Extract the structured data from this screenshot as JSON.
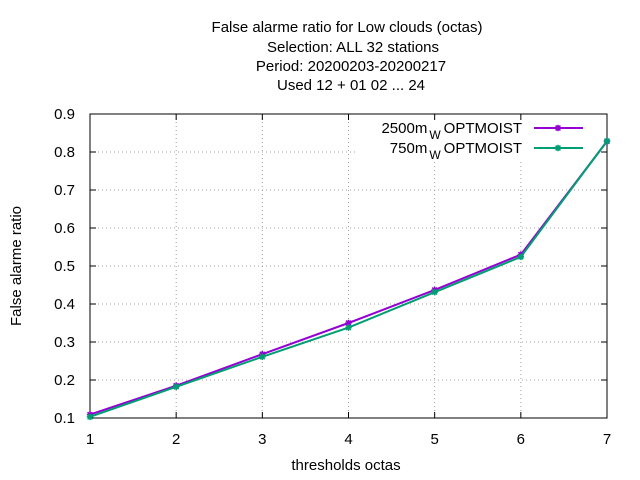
{
  "chart_data": {
    "type": "line",
    "title_lines": [
      "False alarme ratio  for Low clouds (octas)",
      "Selection: ALL     32 stations",
      "Period: 20200203-20200217",
      "Used  12 + 01 02 ... 24"
    ],
    "xlabel": "thresholds octas",
    "ylabel": "False alarme ratio",
    "xlim": [
      1,
      7
    ],
    "ylim": [
      0.1,
      0.9
    ],
    "x_ticks": [
      "1",
      "2",
      "3",
      "4",
      "5",
      "6",
      "7"
    ],
    "y_ticks": [
      "0.1",
      "0.2",
      "0.3",
      "0.4",
      "0.5",
      "0.6",
      "0.7",
      "0.8",
      "0.9"
    ],
    "grid": true,
    "legend_position": "top-right",
    "x": [
      1,
      2,
      3,
      4,
      5,
      6,
      7
    ],
    "series": [
      {
        "name_main": "2500m",
        "name_sub": "W",
        "name_suffix": "OPTMOIST",
        "color": "#9400d3",
        "values": [
          0.109,
          0.185,
          0.268,
          0.35,
          0.437,
          0.53,
          0.828
        ]
      },
      {
        "name_main": "750m",
        "name_sub": "W",
        "name_suffix": "OPTMOIST",
        "color": "#009e73",
        "values": [
          0.103,
          0.182,
          0.261,
          0.338,
          0.431,
          0.524,
          0.829
        ]
      }
    ]
  }
}
